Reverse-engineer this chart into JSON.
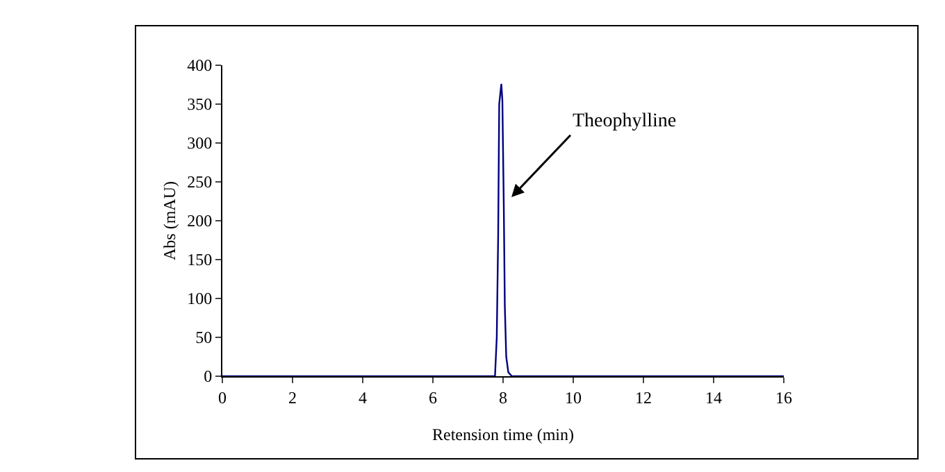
{
  "chart_data": {
    "type": "line",
    "xlabel": "Retension time (min)",
    "ylabel": "Abs (mAU)",
    "xlim": [
      0,
      16
    ],
    "xticks": [
      0,
      2,
      4,
      6,
      8,
      10,
      12,
      14,
      16
    ],
    "ylim": [
      0,
      400
    ],
    "yticks": [
      0,
      50,
      100,
      150,
      200,
      250,
      300,
      350,
      400
    ],
    "grid": false,
    "marker": "none",
    "line_style": "solid",
    "annotations": [
      {
        "text": "Theophylline",
        "x": 8.02,
        "y": 220
      }
    ],
    "series": [
      {
        "color": "#000080",
        "x": [
          0,
          7.77,
          7.82,
          7.86,
          7.89,
          7.95,
          7.98,
          8.02,
          8.05,
          8.09,
          8.15,
          8.25,
          16
        ],
        "values": [
          0,
          0,
          50,
          180,
          350,
          376,
          355,
          220,
          90,
          25,
          5,
          0,
          0
        ]
      }
    ]
  }
}
